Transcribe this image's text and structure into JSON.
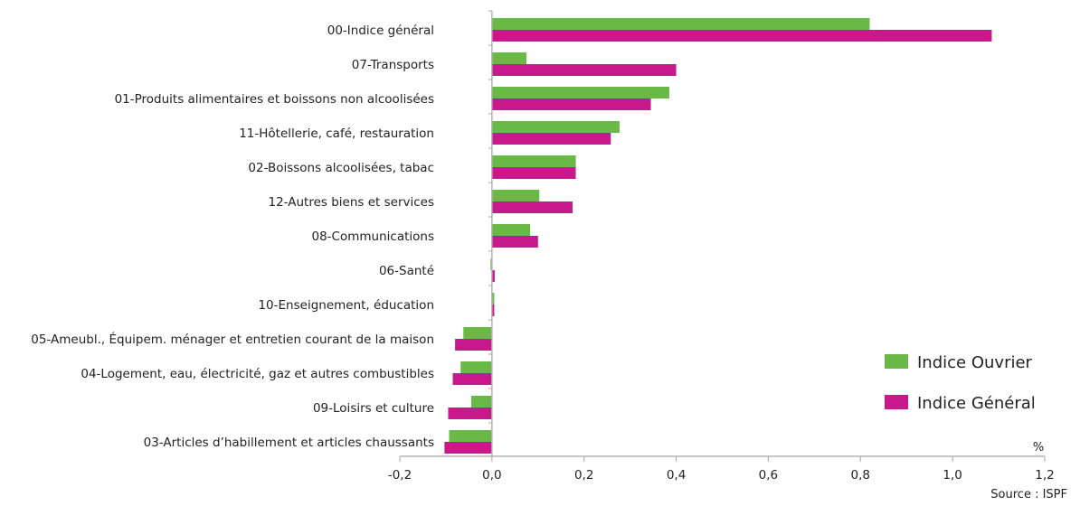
{
  "chart_data": {
    "type": "bar",
    "orientation": "horizontal",
    "categories": [
      "00-Indice général",
      "07-Transports",
      "01-Produits alimentaires et boissons non alcoolisées",
      "11-Hôtellerie, café, restauration",
      "02-Boissons alcoolisées, tabac",
      "12-Autres biens et services",
      "08-Communications",
      "06-Santé",
      "10-Enseignement, éducation",
      "05-Ameubl., Équipem. ménager et entretien courant de la maison",
      "04-Logement, eau, électricité, gaz et autres combustibles",
      "09-Loisirs et culture",
      "03-Articles d’habillement et articles chaussants"
    ],
    "series": [
      {
        "name": "Indice Ouvrier",
        "color": "#6ab845",
        "values": [
          0.82,
          0.075,
          0.385,
          0.277,
          0.182,
          0.103,
          0.083,
          -0.003,
          0.005,
          -0.062,
          -0.068,
          -0.045,
          -0.093
        ]
      },
      {
        "name": "Indice Général",
        "color": "#c8198c",
        "values": [
          1.085,
          0.4,
          0.345,
          0.258,
          0.182,
          0.175,
          0.1,
          0.006,
          0.005,
          -0.08,
          -0.085,
          -0.095,
          -0.103
        ]
      }
    ],
    "xlim": [
      -0.2,
      1.2
    ],
    "xticks": [
      -0.2,
      0.0,
      0.2,
      0.4,
      0.6,
      0.8,
      1.0,
      1.2
    ],
    "tick_labels": [
      "-0,2",
      "0,0",
      "0,2",
      "0,4",
      "0,6",
      "0,8",
      "1,0",
      "1,2"
    ],
    "unit_label": "%",
    "legend_position": "bottom-right",
    "grid": false,
    "axis_color": "#b3b3b3"
  },
  "source": "Source : ISPF"
}
